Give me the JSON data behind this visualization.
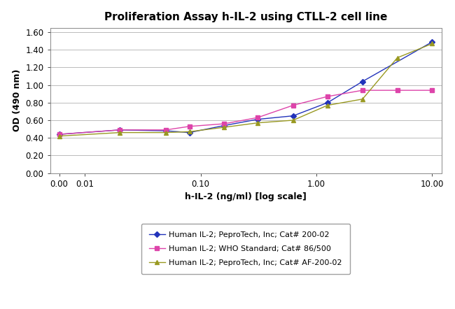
{
  "title": "Proliferation Assay h-IL-2 using CTLL-2 cell line",
  "xlabel": "h-IL-2 (ng/ml) [log scale]",
  "ylabel": "OD (490 nm)",
  "xlim_left": 0.005,
  "xlim_right": 12.0,
  "ylim": [
    0.0,
    1.65
  ],
  "yticks": [
    0.0,
    0.2,
    0.4,
    0.6,
    0.8,
    1.0,
    1.2,
    1.4,
    1.6
  ],
  "xticks_positions": [
    0.006,
    0.01,
    0.1,
    1.0,
    10.0
  ],
  "xtick_labels": [
    "0.00",
    "0.01",
    "0.10",
    "1.00",
    "10.00"
  ],
  "series": [
    {
      "label": "Human IL-2; PeproTech, Inc; Cat# 200-02",
      "color": "#2233bb",
      "marker": "D",
      "markersize": 4,
      "x": [
        0.006,
        0.02,
        0.05,
        0.08,
        0.16,
        0.31,
        0.63,
        1.25,
        2.5,
        10.0
      ],
      "y": [
        0.44,
        0.49,
        0.48,
        0.46,
        0.54,
        0.61,
        0.65,
        0.8,
        1.04,
        1.49
      ]
    },
    {
      "label": "Human IL-2; WHO Standard; Cat# 86/500",
      "color": "#dd44aa",
      "marker": "s",
      "markersize": 4,
      "x": [
        0.006,
        0.02,
        0.05,
        0.08,
        0.16,
        0.31,
        0.63,
        1.25,
        2.5,
        5.0,
        10.0
      ],
      "y": [
        0.44,
        0.49,
        0.49,
        0.53,
        0.56,
        0.63,
        0.77,
        0.87,
        0.94,
        0.94,
        0.94
      ]
    },
    {
      "label": "Human IL-2; PeproTech, Inc; Cat# AF-200-02",
      "color": "#999922",
      "marker": "^",
      "markersize": 4,
      "x": [
        0.006,
        0.02,
        0.05,
        0.08,
        0.16,
        0.31,
        0.63,
        1.25,
        2.5,
        5.0,
        10.0
      ],
      "y": [
        0.42,
        0.46,
        0.46,
        0.47,
        0.52,
        0.57,
        0.6,
        0.77,
        0.84,
        1.31,
        1.47
      ]
    }
  ],
  "title_fontsize": 11,
  "axis_fontsize": 9,
  "tick_fontsize": 8.5,
  "legend_fontsize": 8
}
